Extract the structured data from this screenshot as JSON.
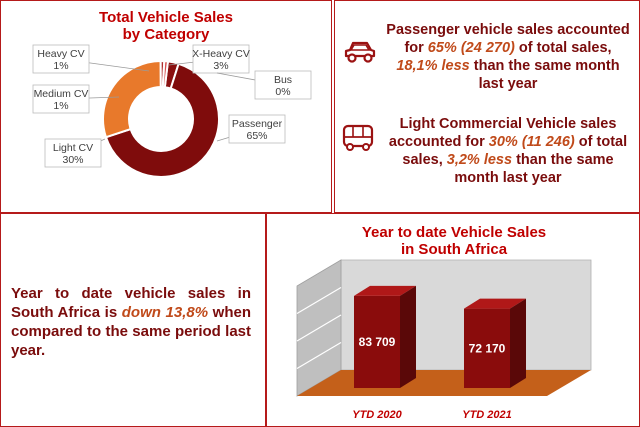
{
  "colors": {
    "border": "#b51a1a",
    "title": "#c00000",
    "body_text": "#7a0c0c",
    "highlight": "#c04a1a",
    "passenger": "#7f0c0c",
    "light_cv": "#e8792b",
    "medium_cv": "#b03030",
    "heavy_cv": "#d85050",
    "x_heavy_cv": "#8a1010",
    "bus": "#ff8080",
    "bar": "#8a0c0c",
    "floor": "#c4601a"
  },
  "icons": {
    "car": "car-icon",
    "bus": "bus-icon"
  },
  "donut": {
    "title_line1": "Total Vehicle Sales",
    "title_line2": "by Category"
  },
  "passenger_info": {
    "pre": "Passenger vehicle sales accounted for ",
    "share": "65% (24 270)",
    "mid": " of total sales, ",
    "change": "18,1% less",
    "post": " than the same month last year"
  },
  "lcv_info": {
    "pre": "Light Commercial Vehicle sales accounted for ",
    "share": "30% (11 246)",
    "mid": " of total sales, ",
    "change": "3,2% less",
    "post": " than the same month last year"
  },
  "ytd_info": {
    "pre": "Year to date vehicle sales in South Africa is ",
    "change": "down 13,8%",
    "post": " when compared to the same period last year."
  },
  "chart_data": [
    {
      "type": "pie",
      "title": "Total Vehicle Sales by Category",
      "donut": true,
      "categories": [
        "Passenger",
        "Light CV",
        "Medium CV",
        "Heavy CV",
        "X-Heavy CV",
        "Bus"
      ],
      "values": [
        65,
        30,
        1,
        1,
        3,
        0
      ],
      "labels": [
        "65%",
        "30%",
        "1%",
        "1%",
        "3%",
        "0%"
      ],
      "unit": "%"
    },
    {
      "type": "bar",
      "title": "Year to date Vehicle Sales in South Africa",
      "categories": [
        "YTD 2020",
        "YTD 2021"
      ],
      "values": [
        83709,
        72170
      ],
      "value_labels": [
        "83 709",
        "72 170"
      ],
      "three_d": true
    }
  ]
}
